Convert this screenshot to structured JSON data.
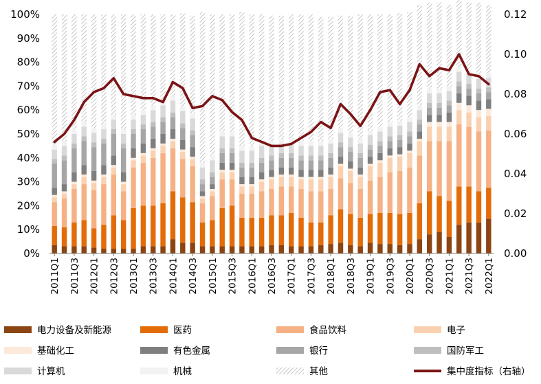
{
  "chart_data": {
    "type": "bar",
    "stacked": true,
    "title": "",
    "xlabel": "",
    "ylabel": "",
    "y2label": "",
    "ylim": [
      0,
      100
    ],
    "y2lim": [
      0,
      0.12
    ],
    "grid": false,
    "legend_position": "bottom",
    "categories": [
      "2011Q1",
      "2011Q2",
      "2011Q3",
      "2011Q4",
      "2012Q1",
      "2012Q2",
      "2012Q3",
      "2012Q4",
      "2013Q1",
      "2013Q2",
      "2013Q3",
      "2013Q4",
      "2014Q1",
      "2014Q2",
      "2014Q3",
      "2014Q4",
      "2015Q1",
      "2015Q2",
      "2015Q3",
      "2015Q4",
      "2016Q1",
      "2016Q2",
      "2016Q3",
      "2016Q4",
      "2017Q1",
      "2017Q2",
      "2017Q3",
      "2017Q4",
      "2018Q1",
      "2018Q2",
      "2018Q3",
      "2018Q4",
      "2019Q1",
      "2019Q2",
      "2019Q3",
      "2019Q4",
      "2020Q1",
      "2020Q2",
      "2020Q3",
      "2020Q4",
      "2021Q1",
      "2021Q2",
      "2021Q3",
      "2021Q4",
      "2022Q1"
    ],
    "x_tick_labels": [
      "2011Q1",
      "2011Q3",
      "2012Q1",
      "2012Q3",
      "2013Q1",
      "2013Q3",
      "2014Q1",
      "2014Q3",
      "2015Q1",
      "2015Q3",
      "2016Q1",
      "2016Q3",
      "2017Q1",
      "2017Q3",
      "2018Q1",
      "2018Q3",
      "2019Q1",
      "2019Q3",
      "2020Q1",
      "2020Q3",
      "2021Q1",
      "2021Q3",
      "2022Q1"
    ],
    "y_tick_labels": [
      "0%",
      "10%",
      "20%",
      "30%",
      "40%",
      "50%",
      "60%",
      "70%",
      "80%",
      "90%",
      "100%"
    ],
    "y2_tick_labels": [
      "0.00",
      "0.02",
      "0.04",
      "0.06",
      "0.08",
      "0.10",
      "0.12"
    ],
    "series": [
      {
        "name": "电力设备及新能源",
        "color": "#8B4513",
        "values": [
          3.5,
          3,
          3,
          3,
          2.5,
          2,
          2,
          2,
          2,
          3,
          3,
          3,
          6,
          4.5,
          4.5,
          3,
          3,
          3,
          3,
          3,
          3,
          3,
          3.5,
          3.5,
          3,
          3,
          3,
          3.5,
          4,
          4.5,
          3.5,
          3,
          4.5,
          4,
          4,
          3.5,
          4,
          6,
          8,
          9,
          7,
          12,
          13,
          13,
          14.5
        ]
      },
      {
        "name": "医药",
        "color": "#E36C09",
        "values": [
          8,
          8,
          10,
          11,
          8,
          10,
          14,
          12,
          17,
          17,
          17,
          18,
          20,
          19,
          17,
          10,
          11,
          16,
          17,
          12,
          12,
          12,
          12.5,
          12.5,
          14,
          12,
          10,
          9.5,
          12,
          14,
          13,
          12,
          12,
          13,
          13,
          13,
          13,
          15,
          18,
          15,
          15,
          16,
          15,
          13,
          13
        ]
      },
      {
        "name": "食品饮料",
        "color": "#F5B183",
        "values": [
          10,
          12,
          14,
          15,
          16,
          17,
          17,
          12,
          17,
          18,
          20,
          21,
          18,
          16,
          15,
          8,
          10,
          12,
          11,
          10,
          10,
          11,
          11,
          12,
          11,
          12,
          13,
          13,
          11,
          13,
          13,
          12,
          14,
          15,
          17,
          18,
          19,
          20,
          21,
          23,
          25,
          26,
          25,
          25,
          24
        ]
      },
      {
        "name": "电子",
        "color": "#FAD1B0",
        "values": [
          2,
          2,
          2,
          3,
          3,
          3,
          3,
          3,
          3,
          3,
          3,
          3,
          3,
          3,
          3,
          2,
          2,
          3,
          3,
          3,
          3,
          4,
          4,
          4,
          4,
          4,
          5,
          5,
          5,
          5,
          5,
          5,
          6,
          6,
          6,
          6,
          6,
          6,
          6,
          6,
          6,
          6,
          6,
          6,
          6
        ]
      },
      {
        "name": "基础化工",
        "color": "#FDE9D9",
        "values": [
          1,
          1,
          1,
          1,
          1,
          1,
          1,
          1,
          1,
          1,
          1,
          1,
          1,
          1,
          1,
          1,
          1,
          1,
          1,
          1,
          1,
          1,
          1,
          1,
          1,
          1,
          1,
          1,
          1,
          1,
          1,
          1,
          1,
          1,
          1,
          1,
          1,
          1,
          2,
          2,
          2,
          3,
          3,
          3,
          3
        ]
      },
      {
        "name": "有色金属",
        "color": "#7F7F7F",
        "values": [
          3,
          3,
          4,
          4,
          4,
          4,
          4,
          4,
          4,
          4,
          4,
          4,
          4,
          4,
          4,
          2,
          2,
          3,
          3,
          3,
          3,
          3,
          3,
          3,
          3,
          3,
          3,
          3,
          3,
          3,
          3,
          3,
          3,
          3,
          3,
          3,
          3,
          3,
          3,
          3,
          4,
          4,
          4,
          4,
          4
        ]
      },
      {
        "name": "银行",
        "color": "#A6A6A6",
        "values": [
          10,
          10,
          10,
          10,
          10,
          9,
          9,
          10,
          6,
          6,
          5,
          5,
          5,
          5,
          5,
          3,
          3,
          4,
          4,
          4,
          4,
          4,
          4,
          4,
          4,
          4,
          4,
          4,
          4,
          4,
          4,
          4,
          3,
          3,
          3,
          3,
          3,
          3,
          3,
          3,
          3,
          3,
          3,
          3,
          3
        ]
      },
      {
        "name": "国防军工",
        "color": "#BFBFBF",
        "values": [
          2,
          2,
          2,
          2,
          2,
          2,
          2,
          2,
          2,
          2,
          2,
          2,
          2,
          2,
          2,
          2,
          2,
          2,
          2,
          2,
          2,
          2,
          2,
          2,
          2,
          2,
          2,
          2,
          2,
          2,
          2,
          2,
          2,
          2,
          2,
          2,
          2,
          2,
          2,
          2,
          2,
          2,
          2,
          2,
          2
        ]
      },
      {
        "name": "计算机",
        "color": "#D9D9D9",
        "values": [
          4,
          4,
          4,
          4,
          4,
          4,
          4,
          4,
          4,
          4,
          5,
          5,
          5,
          5,
          5,
          5,
          5,
          5,
          5,
          5,
          5,
          5,
          4,
          4,
          4,
          4,
          4,
          4,
          4,
          4,
          4,
          4,
          4,
          4,
          4,
          4,
          4,
          4,
          4,
          4,
          4,
          4,
          4,
          4,
          4
        ]
      },
      {
        "name": "机械",
        "color": "#F2F2F2",
        "values": [
          2,
          2,
          2,
          2,
          2,
          2,
          2,
          2,
          2,
          2,
          2,
          2,
          2,
          2,
          2,
          2,
          2,
          2,
          2,
          2,
          2,
          2,
          2,
          2,
          2,
          2,
          2,
          2,
          2,
          2,
          2,
          2,
          2,
          2,
          2,
          2,
          2,
          2,
          2,
          2,
          2,
          2,
          2,
          2,
          2
        ]
      },
      {
        "name": "其他",
        "color": "pattern",
        "values": [
          54.5,
          53,
          48,
          45,
          47.5,
          46,
          42,
          48,
          42,
          40,
          38,
          36,
          34,
          39,
          41,
          63,
          59,
          49,
          49,
          56,
          55,
          53,
          52.5,
          51.5,
          52,
          53,
          53,
          52,
          51,
          47,
          49,
          52,
          48.5,
          47,
          45,
          45,
          44,
          42,
          36,
          36,
          34,
          28,
          28,
          30,
          28.5
        ]
      },
      {
        "name": "集中度指标（右轴）",
        "color": "#7B1416",
        "type": "line",
        "axis": "right",
        "values": [
          0.056,
          0.06,
          0.067,
          0.076,
          0.081,
          0.083,
          0.088,
          0.08,
          0.079,
          0.078,
          0.078,
          0.076,
          0.086,
          0.083,
          0.073,
          0.074,
          0.079,
          0.077,
          0.071,
          0.067,
          0.058,
          0.056,
          0.054,
          0.054,
          0.055,
          0.058,
          0.061,
          0.066,
          0.063,
          0.075,
          0.07,
          0.064,
          0.072,
          0.081,
          0.082,
          0.075,
          0.082,
          0.095,
          0.089,
          0.093,
          0.092,
          0.1,
          0.09,
          0.089,
          0.085
        ]
      }
    ]
  }
}
